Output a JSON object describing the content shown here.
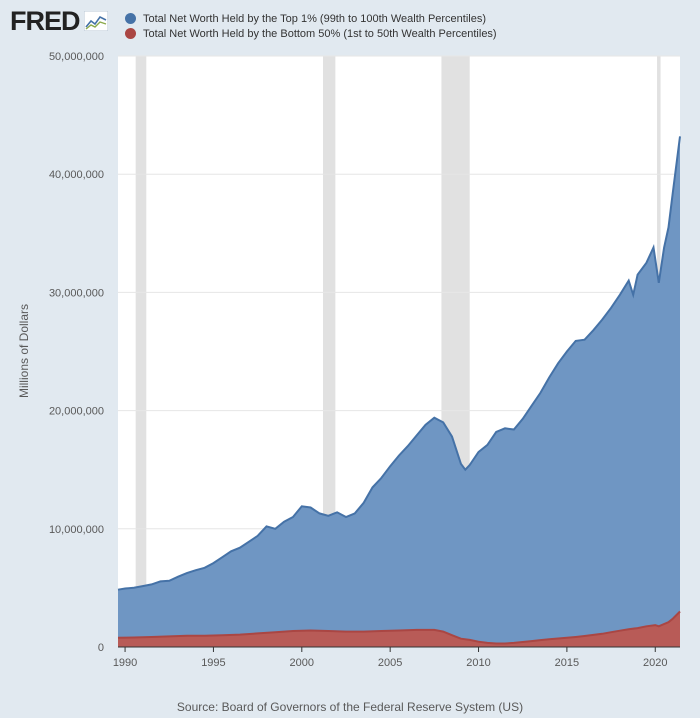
{
  "logo": {
    "text": "FRED",
    "icon": "line-chart-icon"
  },
  "source": "Source: Board of Governors of the Federal Reserve System (US)",
  "colors": {
    "top": "#4572a7",
    "top_fill": "#6f96c3",
    "bottom": "#aa4643",
    "bottom_fill": "#b85b57",
    "recession": "#e1e1e1",
    "background": "#e1e9f0"
  },
  "chart_data": {
    "type": "area",
    "ylabel": "Millions of Dollars",
    "xlabel": "",
    "ylim": [
      0,
      50000000
    ],
    "xlim": [
      1989.6,
      2021.4
    ],
    "yticks": [
      0,
      10000000,
      20000000,
      30000000,
      40000000,
      50000000
    ],
    "ytick_labels": [
      "0",
      "10,000,000",
      "20,000,000",
      "30,000,000",
      "40,000,000",
      "50,000,000"
    ],
    "xticks": [
      1990,
      1995,
      2000,
      2005,
      2010,
      2015,
      2020
    ],
    "xtick_labels": [
      "1990",
      "1995",
      "2000",
      "2005",
      "2010",
      "2015",
      "2020"
    ],
    "grid": true,
    "legend_position": "top-left",
    "recessions": [
      [
        1990.6,
        1991.2
      ],
      [
        2001.2,
        2001.9
      ],
      [
        2007.9,
        2009.5
      ],
      [
        2020.1,
        2020.3
      ]
    ],
    "series": [
      {
        "name": "Total Net Worth Held by the Top 1% (99th to 100th Wealth Percentiles)",
        "points": [
          [
            1989.6,
            4850000
          ],
          [
            1990.0,
            4950000
          ],
          [
            1990.5,
            5020000
          ],
          [
            1991.0,
            5150000
          ],
          [
            1991.5,
            5300000
          ],
          [
            1992.0,
            5550000
          ],
          [
            1992.5,
            5600000
          ],
          [
            1993.0,
            5950000
          ],
          [
            1993.5,
            6250000
          ],
          [
            1994.0,
            6500000
          ],
          [
            1994.5,
            6700000
          ],
          [
            1995.0,
            7100000
          ],
          [
            1995.5,
            7600000
          ],
          [
            1996.0,
            8100000
          ],
          [
            1996.5,
            8400000
          ],
          [
            1997.0,
            8900000
          ],
          [
            1997.5,
            9400000
          ],
          [
            1998.0,
            10200000
          ],
          [
            1998.5,
            10000000
          ],
          [
            1999.0,
            10600000
          ],
          [
            1999.5,
            11000000
          ],
          [
            2000.0,
            11900000
          ],
          [
            2000.5,
            11800000
          ],
          [
            2001.0,
            11300000
          ],
          [
            2001.5,
            11100000
          ],
          [
            2002.0,
            11400000
          ],
          [
            2002.5,
            11000000
          ],
          [
            2003.0,
            11300000
          ],
          [
            2003.5,
            12200000
          ],
          [
            2004.0,
            13500000
          ],
          [
            2004.5,
            14300000
          ],
          [
            2005.0,
            15300000
          ],
          [
            2005.5,
            16200000
          ],
          [
            2006.0,
            17000000
          ],
          [
            2006.5,
            17900000
          ],
          [
            2007.0,
            18800000
          ],
          [
            2007.5,
            19400000
          ],
          [
            2008.0,
            19000000
          ],
          [
            2008.5,
            17800000
          ],
          [
            2009.0,
            15500000
          ],
          [
            2009.25,
            15000000
          ],
          [
            2009.5,
            15400000
          ],
          [
            2010.0,
            16500000
          ],
          [
            2010.5,
            17100000
          ],
          [
            2011.0,
            18200000
          ],
          [
            2011.5,
            18500000
          ],
          [
            2012.0,
            18400000
          ],
          [
            2012.5,
            19300000
          ],
          [
            2013.0,
            20400000
          ],
          [
            2013.5,
            21500000
          ],
          [
            2014.0,
            22800000
          ],
          [
            2014.5,
            24000000
          ],
          [
            2015.0,
            25000000
          ],
          [
            2015.5,
            25900000
          ],
          [
            2016.0,
            26000000
          ],
          [
            2016.5,
            26800000
          ],
          [
            2017.0,
            27700000
          ],
          [
            2017.5,
            28700000
          ],
          [
            2018.0,
            29800000
          ],
          [
            2018.5,
            31000000
          ],
          [
            2018.75,
            29800000
          ],
          [
            2019.0,
            31500000
          ],
          [
            2019.5,
            32500000
          ],
          [
            2019.9,
            33800000
          ],
          [
            2020.2,
            30800000
          ],
          [
            2020.5,
            33800000
          ],
          [
            2020.75,
            35500000
          ],
          [
            2021.0,
            38500000
          ],
          [
            2021.4,
            43200000
          ]
        ]
      },
      {
        "name": "Total Net Worth Held by the Bottom 50% (1st to 50th Wealth Percentiles)",
        "points": [
          [
            1989.6,
            780000
          ],
          [
            1990.5,
            800000
          ],
          [
            1991.5,
            850000
          ],
          [
            1992.5,
            900000
          ],
          [
            1993.5,
            950000
          ],
          [
            1994.5,
            950000
          ],
          [
            1995.5,
            1000000
          ],
          [
            1996.5,
            1050000
          ],
          [
            1997.5,
            1150000
          ],
          [
            1998.5,
            1250000
          ],
          [
            1999.5,
            1350000
          ],
          [
            2000.5,
            1400000
          ],
          [
            2001.5,
            1350000
          ],
          [
            2002.5,
            1300000
          ],
          [
            2003.5,
            1300000
          ],
          [
            2004.5,
            1350000
          ],
          [
            2005.5,
            1400000
          ],
          [
            2006.5,
            1450000
          ],
          [
            2007.5,
            1450000
          ],
          [
            2008.0,
            1300000
          ],
          [
            2008.5,
            1000000
          ],
          [
            2009.0,
            700000
          ],
          [
            2009.5,
            600000
          ],
          [
            2010.0,
            450000
          ],
          [
            2010.5,
            350000
          ],
          [
            2011.0,
            300000
          ],
          [
            2011.5,
            300000
          ],
          [
            2012.0,
            350000
          ],
          [
            2012.5,
            420000
          ],
          [
            2013.0,
            500000
          ],
          [
            2013.5,
            580000
          ],
          [
            2014.0,
            650000
          ],
          [
            2014.5,
            720000
          ],
          [
            2015.0,
            780000
          ],
          [
            2015.5,
            850000
          ],
          [
            2016.0,
            930000
          ],
          [
            2016.5,
            1020000
          ],
          [
            2017.0,
            1120000
          ],
          [
            2017.5,
            1250000
          ],
          [
            2018.0,
            1380000
          ],
          [
            2018.5,
            1500000
          ],
          [
            2019.0,
            1600000
          ],
          [
            2019.5,
            1750000
          ],
          [
            2020.0,
            1850000
          ],
          [
            2020.2,
            1750000
          ],
          [
            2020.5,
            1950000
          ],
          [
            2020.75,
            2100000
          ],
          [
            2021.0,
            2400000
          ],
          [
            2021.4,
            3000000
          ]
        ]
      }
    ]
  }
}
